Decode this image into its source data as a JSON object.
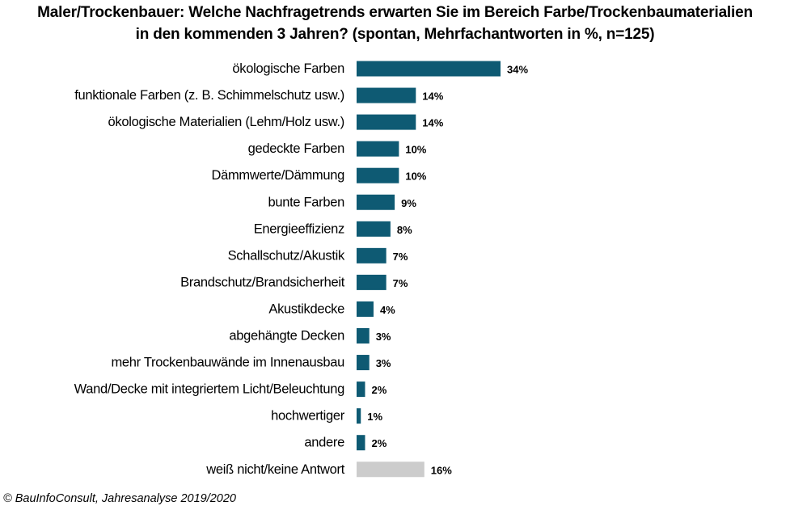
{
  "chart_data": {
    "type": "bar",
    "orientation": "horizontal",
    "title": "Maler/Trockenbauer:  Welche Nachfragetrends  erwarten Sie im Bereich Farbe/Trockenbaumaterialien",
    "subtitle": "in den kommenden  3 Jahren? (spontan, Mehrfachantworten  in %, n=125)",
    "categories": [
      "ökologische Farben",
      "funktionale Farben (z. B. Schimmelschutz usw.)",
      "ökologische Materialien (Lehm/Holz usw.)",
      "gedeckte Farben",
      "Dämmwerte/Dämmung",
      "bunte Farben",
      "Energieeffizienz",
      "Schallschutz/Akustik",
      "Brandschutz/Brandsicherheit",
      "Akustikdecke",
      "abgehängte Decken",
      "mehr Trockenbauwände im Innenausbau",
      "Wand/Decke mit integriertem Licht/Beleuchtung",
      "hochwertiger",
      "andere",
      "weiß nicht/keine Antwort"
    ],
    "values": [
      34,
      14,
      14,
      10,
      10,
      9,
      8,
      7,
      7,
      4,
      3,
      3,
      2,
      1,
      2,
      16
    ],
    "value_labels": [
      "34%",
      "14%",
      "14%",
      "10%",
      "10%",
      "9%",
      "8%",
      "7%",
      "7%",
      "4%",
      "3%",
      "3%",
      "2%",
      "1%",
      "2%",
      "16%"
    ],
    "colors": {
      "bar": "#0e5a73",
      "no_answer_bar": "#cccccc"
    },
    "highlight_last_in_grey": true,
    "grid": false,
    "legend": "none"
  },
  "footer": {
    "source": "© BauInfoConsult, Jahresanalyse 2019/2020"
  }
}
